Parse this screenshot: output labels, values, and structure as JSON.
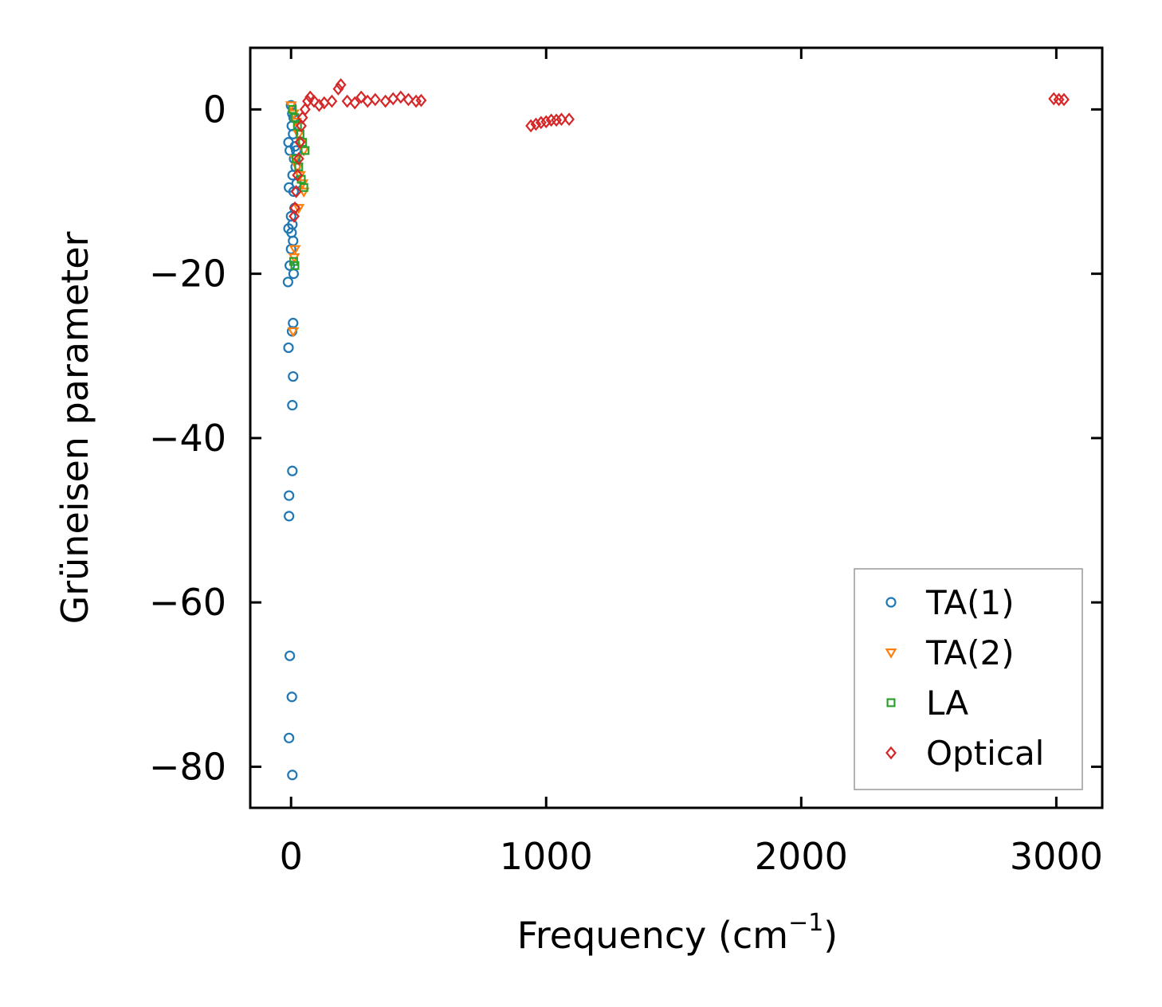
{
  "chart_data": {
    "type": "scatter",
    "title": "",
    "xlabel": "Frequency (cm",
    "xlabel_sup": "−1",
    "xlabel_close": ")",
    "ylabel": "Grüneisen parameter",
    "xlim": [
      -160,
      3180
    ],
    "ylim": [
      -85,
      7.5
    ],
    "xticks": [
      0,
      1000,
      2000,
      3000
    ],
    "xtick_labels": [
      "0",
      "1000",
      "2000",
      "3000"
    ],
    "yticks": [
      0,
      -20,
      -40,
      -60,
      -80
    ],
    "ytick_labels": [
      "0",
      "−20",
      "−40",
      "−60",
      "−80"
    ],
    "grid": false,
    "legend_position": "bottom-right",
    "series": [
      {
        "name": "TA(1)",
        "marker": "circle",
        "color": "#1f77b4",
        "points": [
          [
            0,
            0.5
          ],
          [
            5,
            -0.5
          ],
          [
            10,
            -1
          ],
          [
            3,
            -2
          ],
          [
            8,
            -3
          ],
          [
            -10,
            -4
          ],
          [
            15,
            -4.5
          ],
          [
            -5,
            -5
          ],
          [
            20,
            -5
          ],
          [
            12,
            -6
          ],
          [
            18,
            -7
          ],
          [
            6,
            -8
          ],
          [
            22,
            -9
          ],
          [
            -8,
            -9.5
          ],
          [
            10,
            -10
          ],
          [
            14,
            -12
          ],
          [
            0,
            -13
          ],
          [
            5,
            -14
          ],
          [
            -10,
            -14.5
          ],
          [
            2,
            -15
          ],
          [
            8,
            -16
          ],
          [
            0,
            -17
          ],
          [
            -5,
            -19
          ],
          [
            10,
            -20
          ],
          [
            -12,
            -21
          ],
          [
            8,
            -26
          ],
          [
            4,
            -27
          ],
          [
            -10,
            -29
          ],
          [
            8,
            -32.5
          ],
          [
            5,
            -36
          ],
          [
            5,
            -44
          ],
          [
            -8,
            -47
          ],
          [
            -8,
            -49.5
          ],
          [
            -5,
            -66.5
          ],
          [
            3,
            -71.5
          ],
          [
            -8,
            -76.5
          ],
          [
            5,
            -81
          ]
        ]
      },
      {
        "name": "TA(2)",
        "marker": "triangle-down",
        "color": "#ff7f0e",
        "points": [
          [
            0,
            0.5
          ],
          [
            10,
            -0.5
          ],
          [
            20,
            -1.5
          ],
          [
            30,
            -3
          ],
          [
            40,
            -4
          ],
          [
            50,
            -5
          ],
          [
            15,
            -6
          ],
          [
            25,
            -7
          ],
          [
            35,
            -8
          ],
          [
            45,
            -9
          ],
          [
            50,
            -10
          ],
          [
            30,
            -12
          ],
          [
            15,
            -17
          ],
          [
            12,
            -18
          ],
          [
            8,
            -27
          ]
        ]
      },
      {
        "name": "LA",
        "marker": "square",
        "color": "#2ca02c",
        "points": [
          [
            5,
            0
          ],
          [
            15,
            -1
          ],
          [
            25,
            -2
          ],
          [
            35,
            -3
          ],
          [
            45,
            -4
          ],
          [
            55,
            -5
          ],
          [
            20,
            -6
          ],
          [
            30,
            -7
          ],
          [
            40,
            -8.5
          ],
          [
            50,
            -9.5
          ],
          [
            10,
            -18.5
          ],
          [
            15,
            -19
          ]
        ]
      },
      {
        "name": "Optical",
        "marker": "diamond",
        "color": "#d62728",
        "points": [
          [
            45,
            -1
          ],
          [
            55,
            0
          ],
          [
            65,
            1
          ],
          [
            75,
            1.5
          ],
          [
            90,
            1
          ],
          [
            110,
            0.5
          ],
          [
            130,
            0.8
          ],
          [
            160,
            1
          ],
          [
            185,
            2.5
          ],
          [
            195,
            3
          ],
          [
            220,
            1
          ],
          [
            250,
            0.8
          ],
          [
            275,
            1.5
          ],
          [
            300,
            1
          ],
          [
            330,
            1.2
          ],
          [
            370,
            1
          ],
          [
            400,
            1.3
          ],
          [
            430,
            1.5
          ],
          [
            460,
            1.2
          ],
          [
            490,
            1
          ],
          [
            510,
            1.1
          ],
          [
            40,
            -2
          ],
          [
            35,
            -4
          ],
          [
            30,
            -6
          ],
          [
            25,
            -8
          ],
          [
            20,
            -10
          ],
          [
            15,
            -12
          ],
          [
            12,
            -13
          ],
          [
            940,
            -2
          ],
          [
            960,
            -1.8
          ],
          [
            980,
            -1.6
          ],
          [
            1000,
            -1.5
          ],
          [
            1020,
            -1.3
          ],
          [
            1040,
            -1.3
          ],
          [
            1060,
            -1.2
          ],
          [
            1090,
            -1.2
          ],
          [
            2990,
            1.3
          ],
          [
            3010,
            1.2
          ],
          [
            3030,
            1.2
          ]
        ]
      }
    ]
  }
}
